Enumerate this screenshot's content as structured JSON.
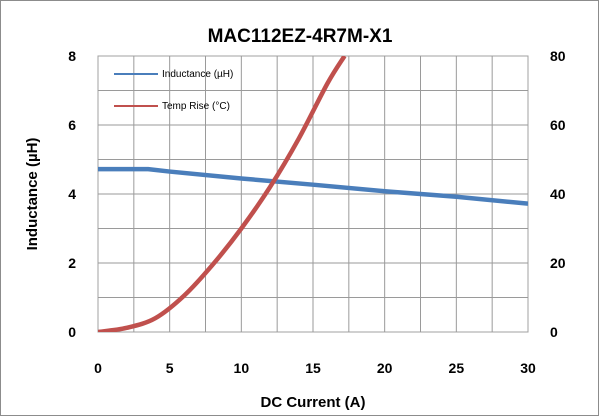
{
  "chart_data": {
    "type": "line",
    "title": "MAC112EZ-4R7M-X1",
    "xlabel": "DC Current (A)",
    "ylabel": "Inductance (µH)",
    "y2label": "",
    "xlim": [
      0,
      30
    ],
    "ylim": [
      0,
      8
    ],
    "y2lim": [
      0,
      80
    ],
    "x_ticks": [
      "0",
      "5",
      "10",
      "15",
      "20",
      "25",
      "30"
    ],
    "y_ticks": [
      "0",
      "2",
      "4",
      "6",
      "8"
    ],
    "y2_ticks": [
      "0",
      "20",
      "40",
      "60",
      "80"
    ],
    "grid": true,
    "legend_placement": "top-left",
    "series": [
      {
        "name": "Inductance (µH)",
        "axis": "left",
        "color": "#4a7ebb",
        "x": [
          0,
          3.5,
          5,
          10,
          15,
          20,
          25,
          30
        ],
        "y": [
          4.72,
          4.72,
          4.65,
          4.45,
          4.27,
          4.08,
          3.92,
          3.72
        ]
      },
      {
        "name": "Temp Rise (°C)",
        "axis": "right",
        "color": "#c0504d",
        "x": [
          0,
          2,
          4,
          6,
          8,
          10,
          12,
          14,
          16,
          17.2
        ],
        "y": [
          0,
          1.2,
          4,
          10.5,
          19.5,
          30,
          42,
          56,
          72,
          80
        ]
      }
    ]
  }
}
